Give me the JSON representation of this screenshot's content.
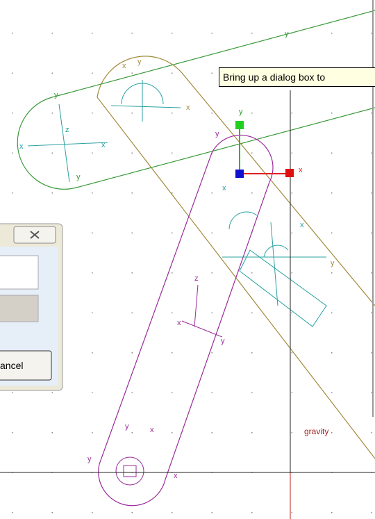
{
  "tooltip": "Bring up a dialog box to",
  "dialog": {
    "button": "ancel"
  },
  "gravity": "gravity",
  "labels": [
    "y",
    "z",
    "x",
    "y",
    "x",
    "y",
    "x",
    "y",
    "x",
    "y",
    "y",
    "x",
    "z",
    "y",
    "x",
    "y",
    "x",
    "y",
    "x",
    "x",
    "x",
    "y"
  ]
}
